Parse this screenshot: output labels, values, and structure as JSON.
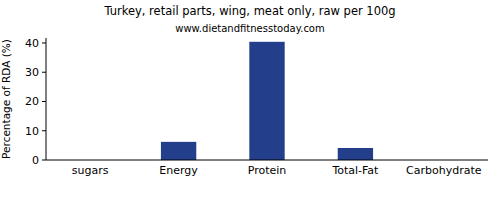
{
  "chart_data": {
    "type": "bar",
    "title": "Turkey, retail parts, wing, meat only, raw per 100g",
    "subtitle": "www.dietandfitnesstoday.com",
    "y_label": "Percentage of RDA (%)",
    "categories": [
      "sugars",
      "Energy",
      "Protein",
      "Total-Fat",
      "Carbohydrate"
    ],
    "values": [
      0,
      6.2,
      40.4,
      4.1,
      0
    ],
    "color": "#233e8b",
    "ylim": [
      0,
      41.7
    ],
    "yticks": [
      0,
      10,
      20,
      30,
      40
    ],
    "grid": false
  }
}
